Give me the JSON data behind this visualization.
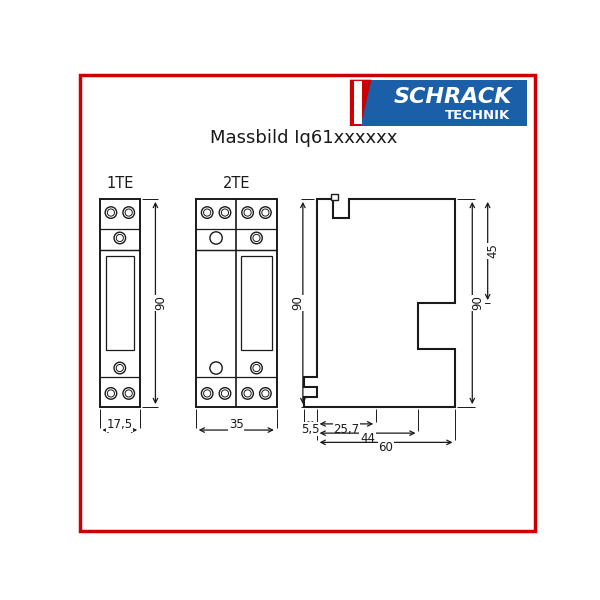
{
  "title": "Massbild Iq61xxxxxx",
  "bg_color": "#ffffff",
  "border_color": "#cc0000",
  "line_color": "#1a1a1a",
  "dim_color": "#1a1a1a",
  "logo_blue": "#1a5fa8",
  "logo_red": "#cc0000",
  "label_1TE": "1TE",
  "label_2TE": "2TE",
  "dim_17_5": "17,5",
  "dim_35": "35",
  "dim_90_left": "90",
  "dim_90_right": "90",
  "dim_45": "45",
  "dim_25_7": "25,7",
  "dim_44": "44",
  "dim_5_5": "5,5",
  "dim_60": "60"
}
